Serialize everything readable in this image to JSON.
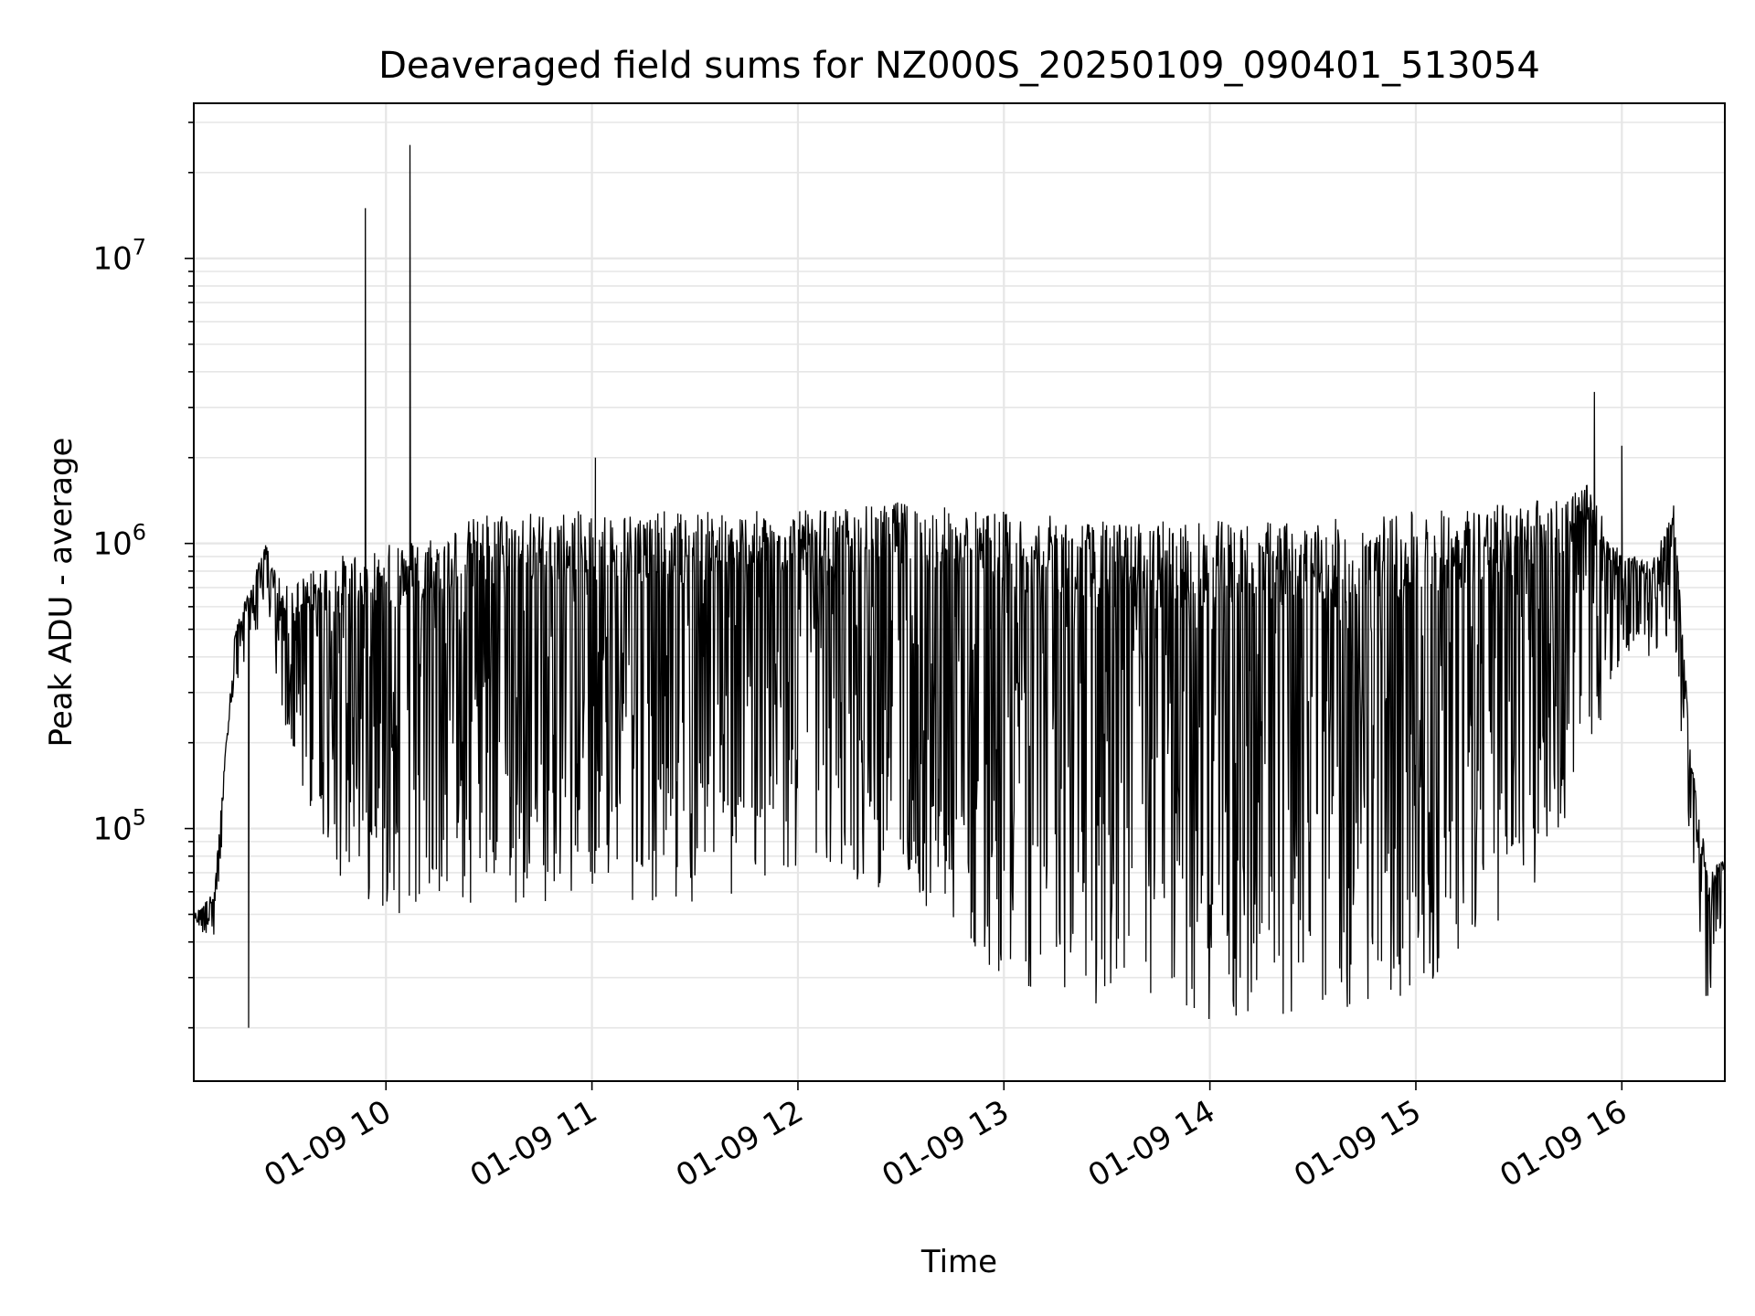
{
  "chart_data": {
    "type": "line",
    "title": "Deaveraged field sums for NZ000S_20250109_090401_513054",
    "xlabel": "Time",
    "ylabel": "Peak ADU - average",
    "y_scale": "log",
    "ylim": [
      13000,
      35000000
    ],
    "xlim": [
      "2025-01-09 09:04:01",
      "2025-01-09 16:30:00"
    ],
    "x_ticks": [
      {
        "value": "2025-01-09 10:00",
        "label": "01-09 10"
      },
      {
        "value": "2025-01-09 11:00",
        "label": "01-09 11"
      },
      {
        "value": "2025-01-09 12:00",
        "label": "01-09 12"
      },
      {
        "value": "2025-01-09 13:00",
        "label": "01-09 13"
      },
      {
        "value": "2025-01-09 14:00",
        "label": "01-09 14"
      },
      {
        "value": "2025-01-09 15:00",
        "label": "01-09 15"
      },
      {
        "value": "2025-01-09 16:00",
        "label": "01-09 16"
      }
    ],
    "y_ticks": [
      {
        "value": 100000,
        "base": "10",
        "exp": "5"
      },
      {
        "value": 1000000,
        "base": "10",
        "exp": "6"
      },
      {
        "value": 10000000,
        "base": "10",
        "exp": "7"
      }
    ],
    "grid": true,
    "grid_minor": true,
    "line_color": "#000000",
    "grid_color": "#e6e6e6",
    "series_note": "dense noisy line; upper envelope and lower troughs by time",
    "envelope": {
      "x": [
        "2025-01-09 09:04",
        "2025-01-09 09:10",
        "2025-01-09 09:16",
        "2025-01-09 09:25",
        "2025-01-09 09:30",
        "2025-01-09 09:45",
        "2025-01-09 10:00",
        "2025-01-09 10:15",
        "2025-01-09 10:30",
        "2025-01-09 11:00",
        "2025-01-09 11:30",
        "2025-01-09 12:00",
        "2025-01-09 12:30",
        "2025-01-09 13:00",
        "2025-01-09 13:30",
        "2025-01-09 14:00",
        "2025-01-09 14:30",
        "2025-01-09 15:00",
        "2025-01-09 15:30",
        "2025-01-09 15:50",
        "2025-01-09 16:00",
        "2025-01-09 16:10",
        "2025-01-09 16:15",
        "2025-01-09 16:20",
        "2025-01-09 16:25",
        "2025-01-09 16:30"
      ],
      "upper": [
        50000,
        60000,
        500000,
        1000000,
        700000,
        900000,
        1000000,
        1100000,
        1300000,
        1300000,
        1300000,
        1300000,
        1400000,
        1300000,
        1200000,
        1200000,
        1200000,
        1300000,
        1400000,
        1600000,
        900000,
        900000,
        1400000,
        200000,
        70000,
        80000
      ],
      "lower": [
        45000,
        40000,
        300000,
        600000,
        200000,
        70000,
        50000,
        50000,
        50000,
        60000,
        50000,
        70000,
        60000,
        30000,
        22000,
        20000,
        22000,
        25000,
        50000,
        150000,
        400000,
        400000,
        500000,
        80000,
        20000,
        60000
      ]
    },
    "spikes": [
      {
        "x": "2025-01-09 09:54",
        "y": 15000000
      },
      {
        "x": "2025-01-09 10:07",
        "y": 25000000
      },
      {
        "x": "2025-01-09 11:01",
        "y": 2000000
      },
      {
        "x": "2025-01-09 15:52",
        "y": 3400000
      },
      {
        "x": "2025-01-09 16:00",
        "y": 2200000
      },
      {
        "x": "2025-01-09 09:20",
        "y": 20000
      }
    ]
  }
}
